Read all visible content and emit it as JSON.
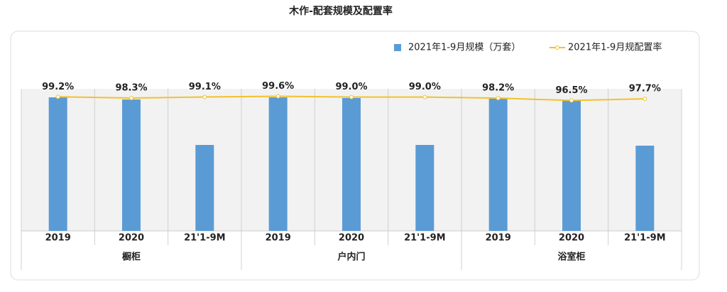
{
  "chart_data": {
    "type": "bar+line",
    "title": "木作-配套规模及配置率",
    "categories": [
      "2019",
      "2020",
      "21'1-9M",
      "2019",
      "2020",
      "21'1-9M",
      "2019",
      "2020",
      "21'1-9M"
    ],
    "groups": [
      "橱柜",
      "户内门",
      "浴室柜"
    ],
    "series": [
      {
        "name": "2021年1-9月规模（万套）",
        "type": "bar",
        "color": "#5b9bd5",
        "values": [
          188,
          185,
          121,
          188,
          187,
          121,
          186,
          183,
          120
        ]
      },
      {
        "name": "2021年1-9月规配置率",
        "type": "line",
        "axis": "y2",
        "color": "#f2c12e",
        "values": [
          99.2,
          98.3,
          99.1,
          99.6,
          99.0,
          99.0,
          98.2,
          96.5,
          97.7
        ],
        "value_labels": [
          "99.2%",
          "98.3%",
          "99.1%",
          "99.6%",
          "99.0%",
          "99.0%",
          "98.2%",
          "96.5%",
          "97.7%"
        ]
      }
    ],
    "ylim": [
      0,
      215
    ],
    "y2lim": [
      0,
      113
    ],
    "legend": "top-right"
  }
}
